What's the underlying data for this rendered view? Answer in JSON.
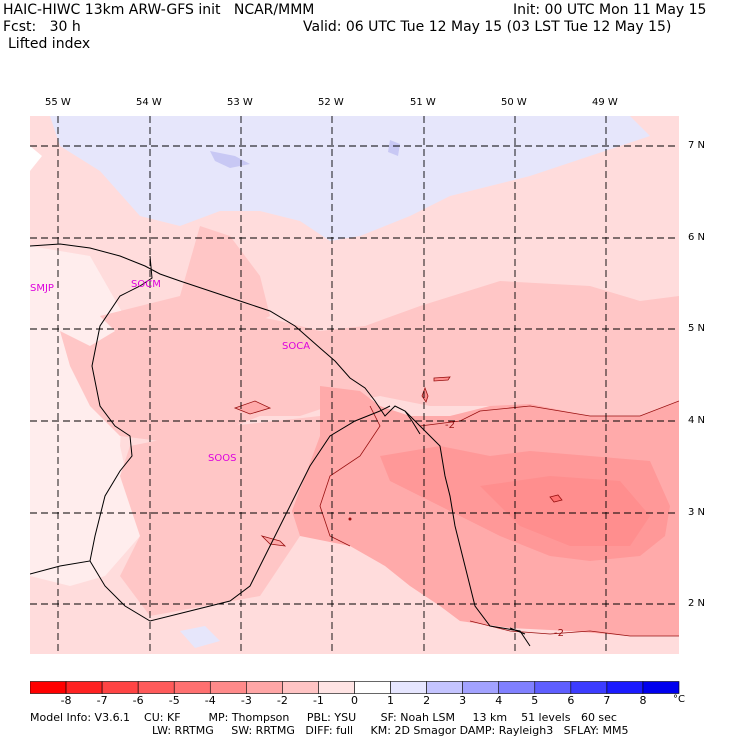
{
  "header": {
    "model_line": "HAIC-HIWC 13km ARW-GFS init   NCAR/MMM",
    "fcst_line": "Fcst:   30 h",
    "field_name": "Lifted index",
    "init_line": "Init: 00 UTC Mon 11 May 15",
    "valid_line": "Valid: 06 UTC Tue 12 May 15 (03 LST Tue 12 May 15)"
  },
  "map": {
    "lon_labels": [
      "55 W",
      "54 W",
      "53 W",
      "52 W",
      "51 W",
      "50 W",
      "49 W"
    ],
    "lat_labels": [
      "7 N",
      "6 N",
      "5 N",
      "4 N",
      "3 N",
      "2 N"
    ],
    "stations": [
      "SMJP",
      "SOCM",
      "SOCA",
      "SOOS"
    ],
    "contour_labels": [
      "-2",
      "-2"
    ]
  },
  "colorbar": {
    "unit": "°C",
    "tick_labels": [
      "-8",
      "-7",
      "-6",
      "-5",
      "-4",
      "-3",
      "-2",
      "-1",
      "0",
      "1",
      "2",
      "3",
      "4",
      "5",
      "6",
      "7",
      "8"
    ],
    "colors": [
      "#ff0000",
      "#ff2222",
      "#ff4444",
      "#ff5a5a",
      "#ff7070",
      "#ff8a8a",
      "#ffa6a6",
      "#ffc4c4",
      "#ffe4e4",
      "#ffffff",
      "#e6e6ff",
      "#c4c4ff",
      "#a2a2ff",
      "#8080ff",
      "#5e5eff",
      "#3c3cff",
      "#1a1aff",
      "#0000ee"
    ]
  },
  "footer": {
    "line1": "Model Info: V3.6.1    CU: KF        MP: Thompson     PBL: YSU       SF: Noah LSM     13 km    51 levels   60 sec",
    "line2": "LW: RRTMG     SW: RRTMG   DIFF: full     KM: 2D Smagor DAMP: Rayleigh3   SFLAY: MM5"
  }
}
